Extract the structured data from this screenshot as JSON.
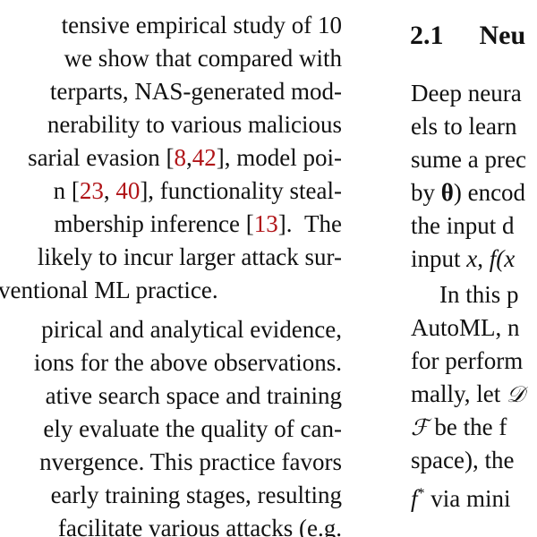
{
  "left_column": {
    "top_fragment": "–",
    "lines": [
      "tensive empirical study of 10",
      "we show that compared with",
      "terparts, NAS-generated mod-",
      "nerability to various malicious",
      "sarial evasion",
      "n",
      "], functionality steal-",
      "mbership inference",
      "The",
      "likely to incur larger attack sur-",
      "ventional ML practice.",
      "pirical and analytical evidence,",
      "ions for the above observations.",
      "ative search space and training",
      "ely evaluate the quality of can-",
      "nvergence. This practice favors",
      "early training stages, resulting",
      "facilitate various attacks (e.g."
    ],
    "line_5_cites": [
      "[",
      "8",
      ",",
      "42",
      "], model poi-"
    ],
    "line_6_cites": [
      "[",
      "23",
      ", ",
      "40"
    ],
    "line_8_cites": [
      "[",
      "13",
      "]."
    ]
  },
  "right_column": {
    "section_number": "2.1",
    "section_title": "Neu",
    "lines": [
      "Deep neura",
      "els to learn",
      "sume a prec",
      "by",
      ") encod",
      "the input d",
      "input",
      "In this p",
      "AutoML, n",
      "for perform",
      "mally, let",
      "be the f",
      "space), the",
      "via mini"
    ],
    "symbols": {
      "theta": "θ",
      "x": "x",
      "comma_f": ", ",
      "f": "f",
      "paren_x": "(x",
      "calD": "𝒟",
      "calF": "ℱ",
      "fstar": "f",
      "star": "*"
    }
  }
}
